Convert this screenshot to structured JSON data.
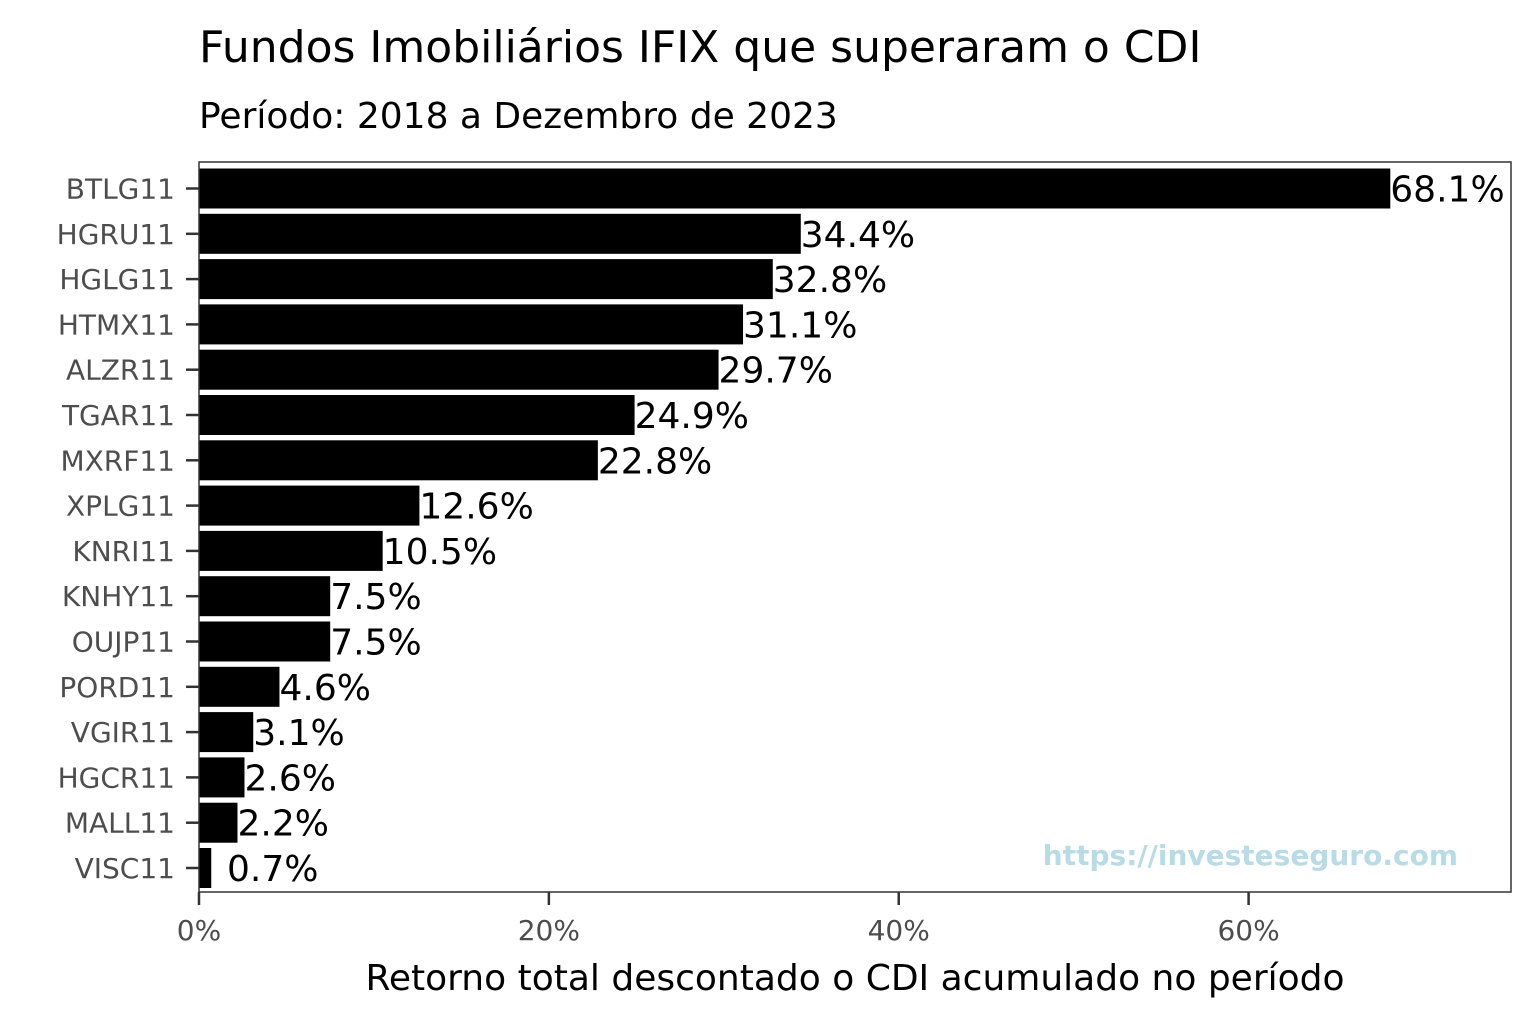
{
  "chart_data": {
    "type": "bar",
    "orientation": "horizontal",
    "title": "Fundos Imobiliários IFIX que superaram o CDI",
    "subtitle": "Período: 2018 a Dezembro de 2023",
    "xlabel": "Retorno total descontado o CDI acumulado no período",
    "ylabel": "",
    "xlim": [
      0,
      75
    ],
    "x_ticks": [
      0,
      20,
      40,
      60
    ],
    "x_tick_labels": [
      "0%",
      "20%",
      "40%",
      "60%"
    ],
    "grid": false,
    "bar_color": "#000000",
    "categories": [
      "BTLG11",
      "HGRU11",
      "HGLG11",
      "HTMX11",
      "ALZR11",
      "TGAR11",
      "MXRF11",
      "XPLG11",
      "KNRI11",
      "KNHY11",
      "OUJP11",
      "PORD11",
      "VGIR11",
      "HGCR11",
      "MALL11",
      "VISC11"
    ],
    "values": [
      68.1,
      34.4,
      32.8,
      31.1,
      29.7,
      24.9,
      22.8,
      12.6,
      10.5,
      7.5,
      7.5,
      4.6,
      3.1,
      2.6,
      2.2,
      0.7
    ],
    "data_labels": [
      "68.1%",
      "34.4%",
      "32.8%",
      "31.1%",
      "29.7%",
      "24.9%",
      "22.8%",
      "12.6%",
      "10.5%",
      "7.5%",
      "7.5%",
      "4.6%",
      "3.1%",
      "2.6%",
      "2.2%",
      "0.7%"
    ]
  },
  "watermark": {
    "text": "https://investeseguro.com",
    "color": "#b8dbe5"
  }
}
